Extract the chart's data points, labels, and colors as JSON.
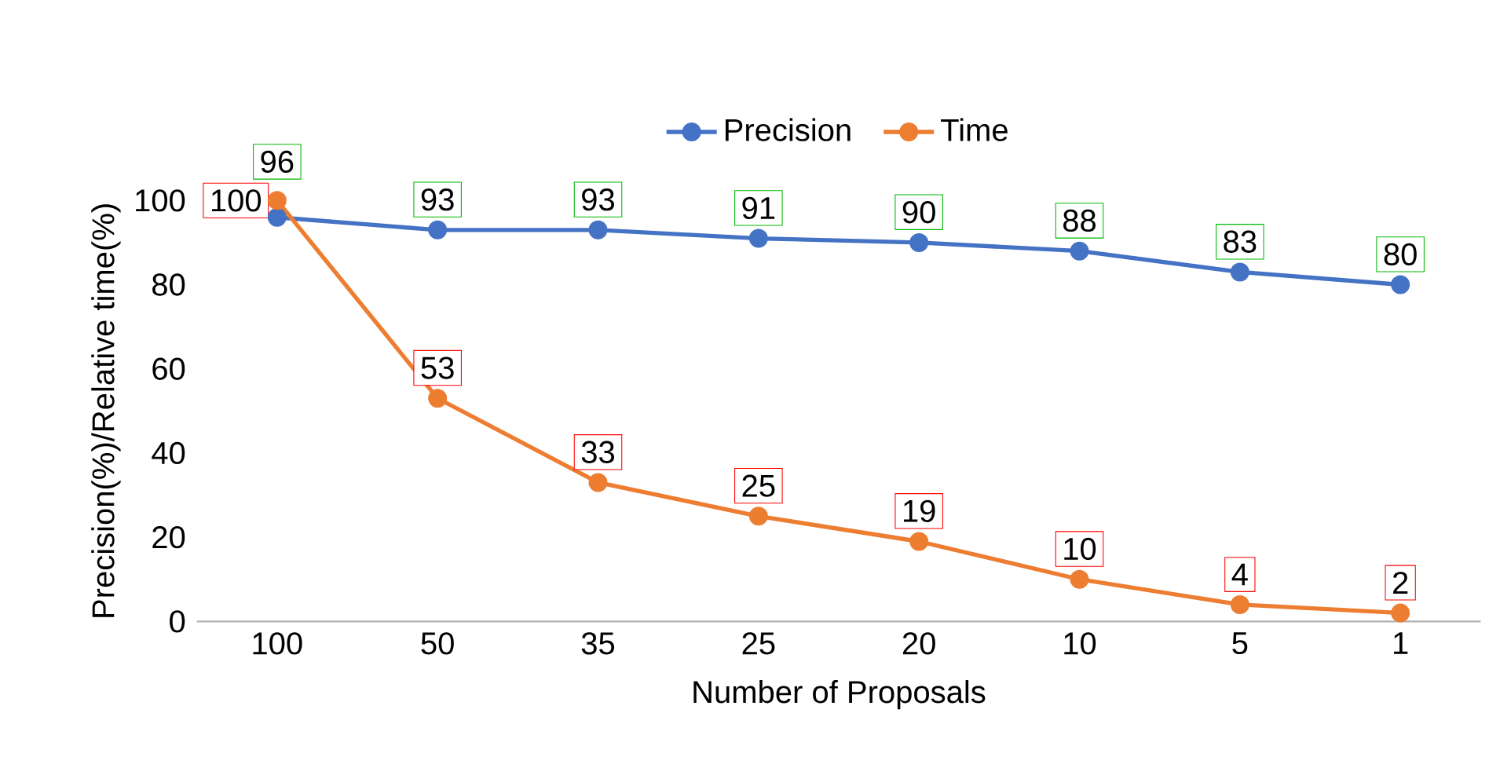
{
  "chart_data": {
    "type": "line",
    "xlabel": "Number of Proposals",
    "ylabel": "Precision(%)/Relative time(%)",
    "categories": [
      "100",
      "50",
      "35",
      "25",
      "20",
      "10",
      "5",
      "1"
    ],
    "series": [
      {
        "name": "Precision",
        "color": "#4472c4",
        "values": [
          96,
          93,
          93,
          91,
          90,
          88,
          83,
          80
        ]
      },
      {
        "name": "Time",
        "color": "#ed7d31",
        "values": [
          100,
          53,
          33,
          25,
          19,
          10,
          4,
          2
        ]
      }
    ],
    "ylim": [
      0,
      100
    ],
    "yticks": [
      0,
      20,
      40,
      60,
      80,
      100
    ],
    "grid": false,
    "legend": "top",
    "marker": "circle",
    "line_style": "solid",
    "data_labels": true
  }
}
